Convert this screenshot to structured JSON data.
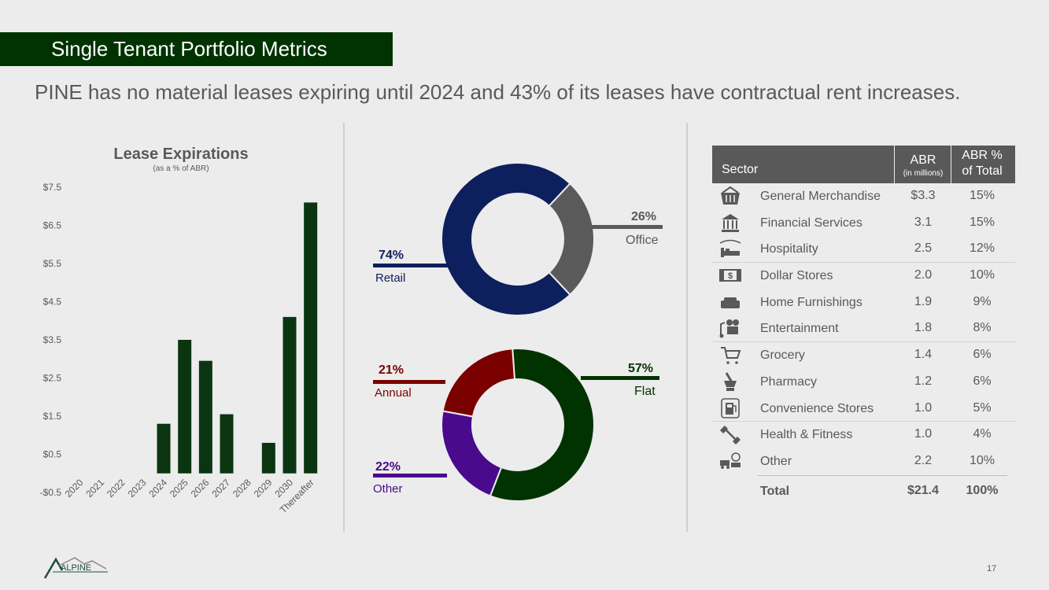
{
  "header": {
    "title": "Single Tenant Portfolio Metrics",
    "headline": "PINE has no material leases expiring until 2024 and 43% of its leases have contractual rent increases."
  },
  "chart_data": [
    {
      "type": "bar",
      "title": "Lease Expirations",
      "subtitle": "(as a % of ABR)",
      "categories": [
        "2020",
        "2021",
        "2022",
        "2023",
        "2024",
        "2025",
        "2026",
        "2027",
        "2028",
        "2029",
        "2030",
        "Thereafter"
      ],
      "values": [
        0,
        0,
        0,
        0,
        1.3,
        3.5,
        2.95,
        1.55,
        0,
        0.8,
        4.1,
        7.1
      ],
      "yticks": [
        "$7.5",
        "$6.5",
        "$5.5",
        "$4.5",
        "$3.5",
        "$2.5",
        "$1.5",
        "$0.5",
        "-$0.5"
      ],
      "ylim": [
        -0.5,
        7.5
      ],
      "color": "#0b3510"
    },
    {
      "type": "pie",
      "segments": [
        {
          "label": "Retail",
          "pct": "74%",
          "value": 74,
          "color": "#0d1f5c"
        },
        {
          "label": "Office",
          "pct": "26%",
          "value": 26,
          "color": "#5a5a5a"
        }
      ]
    },
    {
      "type": "pie",
      "segments": [
        {
          "label": "Flat",
          "pct": "57%",
          "value": 57,
          "color": "#003300"
        },
        {
          "label": "Other",
          "pct": "22%",
          "value": 22,
          "color": "#4a0a8c"
        },
        {
          "label": "Annual",
          "pct": "21%",
          "value": 21,
          "color": "#7a0000"
        }
      ]
    }
  ],
  "table": {
    "headers": {
      "sector": "Sector",
      "abr": "ABR",
      "abr_unit": "(in millions)",
      "pct_line1": "ABR %",
      "pct_line2": "of Total"
    },
    "rows": [
      {
        "icon": "basket-icon",
        "sector": "General Merchandise",
        "abr": "$3.3",
        "pct": "15%"
      },
      {
        "icon": "bank-icon",
        "sector": "Financial Services",
        "abr": "3.1",
        "pct": "15%"
      },
      {
        "icon": "bed-icon",
        "sector": "Hospitality",
        "abr": "2.5",
        "pct": "12%"
      },
      {
        "icon": "dollar-bill-icon",
        "sector": "Dollar Stores",
        "abr": "2.0",
        "pct": "10%"
      },
      {
        "icon": "sofa-icon",
        "sector": "Home Furnishings",
        "abr": "1.9",
        "pct": "9%"
      },
      {
        "icon": "movie-camera-icon",
        "sector": "Entertainment",
        "abr": "1.8",
        "pct": "8%"
      },
      {
        "icon": "shopping-cart-icon",
        "sector": "Grocery",
        "abr": "1.4",
        "pct": "6%"
      },
      {
        "icon": "mortar-pestle-icon",
        "sector": "Pharmacy",
        "abr": "1.2",
        "pct": "6%"
      },
      {
        "icon": "gas-pump-icon",
        "sector": "Convenience Stores",
        "abr": "1.0",
        "pct": "5%"
      },
      {
        "icon": "dumbbell-icon",
        "sector": "Health & Fitness",
        "abr": "1.0",
        "pct": "4%"
      },
      {
        "icon": "misc-vehicles-icon",
        "sector": "Other",
        "abr": "2.2",
        "pct": "10%"
      }
    ],
    "total": {
      "label": "Total",
      "abr": "$21.4",
      "pct": "100%"
    }
  },
  "footer": {
    "page_number": "17",
    "logo_text": "ALPINE"
  }
}
